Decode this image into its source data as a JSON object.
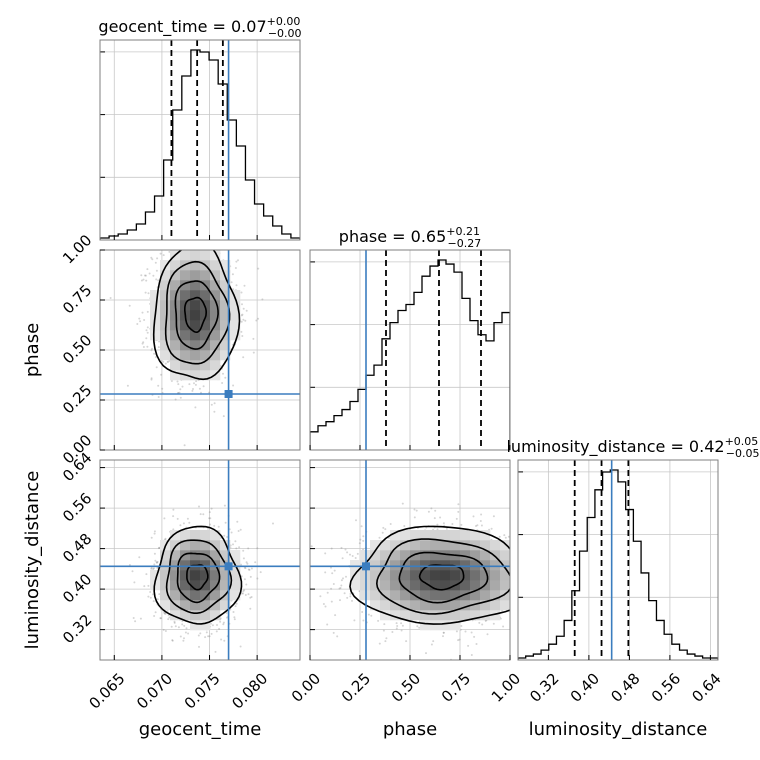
{
  "chart_data": {
    "type": "corner",
    "parameters": [
      "geocent_time",
      "phase",
      "luminosity_distance"
    ],
    "axis_labels": {
      "geocent_time": "geocent_time",
      "phase": "phase",
      "luminosity_distance": "luminosity_distance"
    },
    "ranges": {
      "geocent_time": [
        0.0635,
        0.0845
      ],
      "phase": [
        0.0,
        1.0
      ],
      "luminosity_distance": [
        0.26,
        0.655
      ]
    },
    "ticks": {
      "geocent_time": [
        0.065,
        0.07,
        0.075,
        0.08
      ],
      "phase": [
        0.0,
        0.25,
        0.5,
        0.75,
        1.0
      ],
      "luminosity_distance": [
        0.32,
        0.4,
        0.48,
        0.56,
        0.64
      ]
    },
    "tick_labels": {
      "geocent_time": [
        "0.065",
        "0.070",
        "0.075",
        "0.080"
      ],
      "phase": [
        "0.00",
        "0.25",
        "0.50",
        "0.75",
        "1.00"
      ],
      "luminosity_distance": [
        "0.32",
        "0.40",
        "0.48",
        "0.56",
        "0.64"
      ]
    },
    "titles": {
      "geocent_time": {
        "prefix": "geocent_time = ",
        "median": "0.07",
        "plus": "+0.00",
        "minus": "−0.00"
      },
      "phase": {
        "prefix": "phase = ",
        "median": "0.65",
        "plus": "+0.21",
        "minus": "−0.27"
      },
      "luminosity_distance": {
        "prefix": "luminosity_distance = ",
        "median": "0.42",
        "plus": "+0.05",
        "minus": "−0.05"
      }
    },
    "injection": {
      "geocent_time": 0.077,
      "phase": 0.28,
      "luminosity_distance": 0.445
    },
    "quantiles": {
      "geocent_time": [
        0.071,
        0.0737,
        0.0764
      ],
      "phase": [
        0.38,
        0.645,
        0.855
      ],
      "luminosity_distance": [
        0.372,
        0.425,
        0.478
      ]
    },
    "histograms": {
      "geocent_time": {
        "edges_range": [
          0.0635,
          0.0845
        ],
        "counts": [
          1,
          2,
          3,
          5,
          8,
          14,
          22,
          40,
          65,
          82,
          95,
          94,
          90,
          78,
          60,
          47,
          30,
          18,
          12,
          7,
          3,
          1
        ]
      },
      "phase": {
        "edges_range": [
          0.0,
          1.0
        ],
        "counts": [
          9,
          12,
          14,
          17,
          20,
          24,
          30,
          37,
          42,
          55,
          63,
          69,
          72,
          78,
          86,
          91,
          94,
          92,
          88,
          75,
          64,
          57,
          54,
          63,
          68
        ]
      },
      "luminosity_distance": {
        "edges_range": [
          0.26,
          0.655
        ],
        "counts": [
          1,
          2,
          3,
          5,
          8,
          12,
          20,
          35,
          55,
          72,
          86,
          95,
          96,
          90,
          76,
          60,
          44,
          30,
          20,
          13,
          8,
          5,
          3,
          2,
          1,
          1
        ]
      }
    },
    "density_2d": [
      {
        "x": "geocent_time",
        "y": "phase",
        "center": [
          0.0735,
          0.68
        ],
        "sigma": [
          0.0022,
          0.17
        ]
      },
      {
        "x": "geocent_time",
        "y": "luminosity_distance",
        "center": [
          0.0737,
          0.425
        ],
        "sigma": [
          0.0022,
          0.048
        ]
      },
      {
        "x": "phase",
        "y": "luminosity_distance",
        "center": [
          0.66,
          0.425
        ],
        "sigma": [
          0.22,
          0.048
        ]
      }
    ],
    "colors": {
      "injection": "#3b7dbf",
      "histogram": "#000000",
      "quantile": "#000000",
      "density": "#000000",
      "grid": "#c8c8c8"
    },
    "grid": true
  }
}
